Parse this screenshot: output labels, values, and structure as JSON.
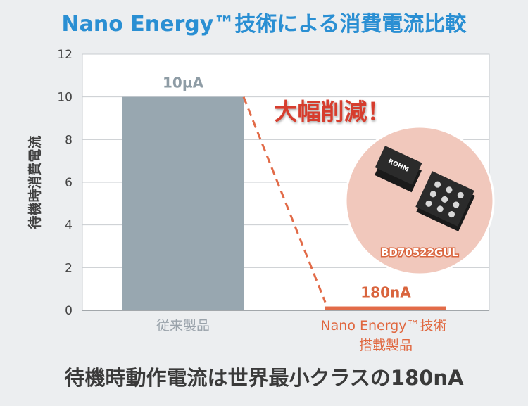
{
  "chart_data": {
    "type": "bar",
    "title": "Nano Energy™技術による消費電流比較",
    "ylabel": "待機時消費電流",
    "ylim": [
      0,
      12
    ],
    "yticks": [
      0,
      2,
      4,
      6,
      8,
      10,
      12
    ],
    "grid": true,
    "categories": [
      "従来製品",
      "Nano Energy™技術\n搭載製品"
    ],
    "values": [
      10,
      0.18
    ],
    "value_labels": [
      "10µA",
      "180nA"
    ],
    "colors": [
      "#98a7b0",
      "#e26b48"
    ],
    "annotation": "大幅削減！",
    "chip_label": "BD70522GUL",
    "chip_marking": "ROHM",
    "footer": "待機時動作電流は世界最小クラスの180nA"
  }
}
